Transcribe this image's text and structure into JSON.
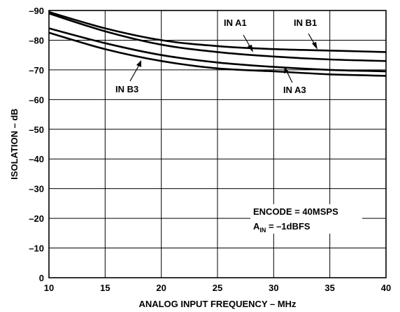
{
  "chart_data": {
    "type": "line",
    "xlabel": "ANALOG INPUT FREQUENCY – MHz",
    "ylabel": "ISOLATION – dB",
    "xlim": [
      10,
      40
    ],
    "ylim": [
      0,
      -90
    ],
    "x_ticks": [
      "10",
      "15",
      "20",
      "25",
      "30",
      "35",
      "40"
    ],
    "y_ticks": [
      "0",
      "–10",
      "–20",
      "–30",
      "–40",
      "–50",
      "–60",
      "–70",
      "–80",
      "–90"
    ],
    "grid": true,
    "x": [
      10,
      15,
      20,
      25,
      30,
      35,
      40
    ],
    "series": [
      {
        "name": "IN B1",
        "values": [
          -89.5,
          -84,
          -80,
          -78,
          -77,
          -76.5,
          -76
        ]
      },
      {
        "name": "IN A1",
        "values": [
          -89,
          -83,
          -78.5,
          -76,
          -74.5,
          -73.5,
          -73
        ]
      },
      {
        "name": "IN A3",
        "values": [
          -84,
          -79,
          -75,
          -72.5,
          -71,
          -70,
          -69.5
        ]
      },
      {
        "name": "IN B3",
        "values": [
          -82.5,
          -77,
          -73,
          -70.5,
          -69.5,
          -68.5,
          -68
        ]
      }
    ],
    "annotations": {
      "encode": "ENCODE = 40MSPS",
      "ain_main": "A",
      "ain_sub": "IN",
      "ain_value": " = –1dBFS"
    }
  }
}
